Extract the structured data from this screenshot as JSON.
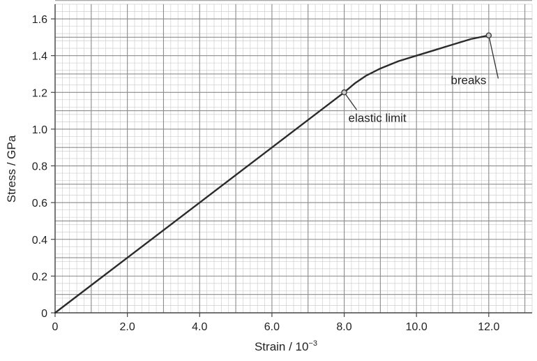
{
  "chart_data": {
    "type": "line",
    "xlabel_main": "Strain / 10",
    "xlabel_exp": "−3",
    "ylabel": "Stress / GPa",
    "xlim": [
      0,
      13.2
    ],
    "ylim": [
      0,
      1.68
    ],
    "xticks": [
      {
        "value": 0,
        "label": "0"
      },
      {
        "value": 2,
        "label": "2.0"
      },
      {
        "value": 4,
        "label": "4.0"
      },
      {
        "value": 6,
        "label": "6.0"
      },
      {
        "value": 8,
        "label": "8.0"
      },
      {
        "value": 10,
        "label": "10.0"
      },
      {
        "value": 12,
        "label": "12.0"
      }
    ],
    "yticks": [
      {
        "value": 0,
        "label": "0"
      },
      {
        "value": 0.2,
        "label": "0.2"
      },
      {
        "value": 0.4,
        "label": "0.4"
      },
      {
        "value": 0.6,
        "label": "0.6"
      },
      {
        "value": 0.8,
        "label": "0.8"
      },
      {
        "value": 1.0,
        "label": "1.0"
      },
      {
        "value": 1.2,
        "label": "1.2"
      },
      {
        "value": 1.4,
        "label": "1.4"
      },
      {
        "value": 1.6,
        "label": "1.6"
      }
    ],
    "grid": {
      "major_x": 2.0,
      "minor_x": 0.2,
      "major_y": 0.2,
      "minor_y": 0.04
    },
    "series": [
      {
        "x": [
          0,
          8.0,
          8.3,
          8.6,
          9.0,
          9.5,
          10.0,
          10.5,
          11.0,
          11.5,
          12.0
        ],
        "y": [
          0,
          1.2,
          1.25,
          1.29,
          1.33,
          1.37,
          1.4,
          1.43,
          1.46,
          1.49,
          1.51
        ]
      }
    ],
    "annotations": [
      {
        "text": "elastic limit",
        "point": [
          8.0,
          1.2
        ],
        "label_at": [
          8.0,
          1.04
        ]
      },
      {
        "text": "breaks",
        "point": [
          12.0,
          1.51
        ],
        "label_at": [
          10.95,
          1.245
        ]
      }
    ],
    "colors": {
      "line": "#2b2b2b",
      "major_grid": "#8c8c8c",
      "minor_grid": "#cfcfcf",
      "marker_fill": "#c8c8c8"
    }
  }
}
